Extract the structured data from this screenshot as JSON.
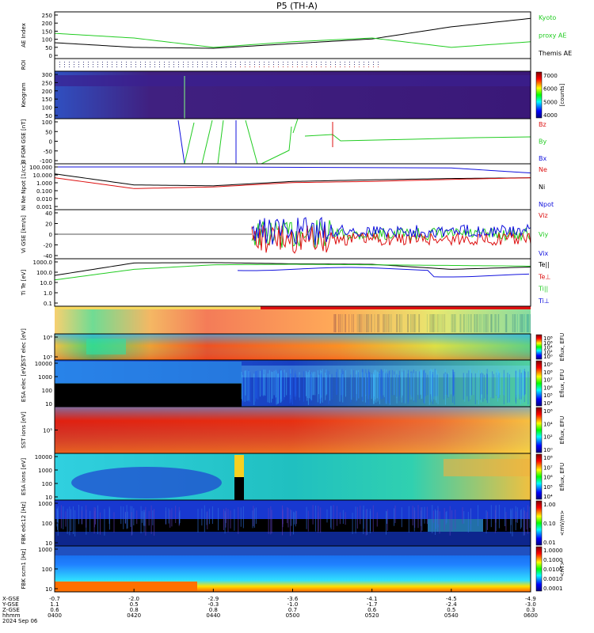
{
  "title": "P5 (TH-A)",
  "colors": {
    "green": "#22cc22",
    "red": "#dd1111",
    "blue": "#1111dd",
    "black": "#000000"
  },
  "panels": [
    {
      "id": "ae",
      "ylabel": "AE Index",
      "yticks": [
        "250",
        "200",
        "150",
        "100",
        "50",
        "0"
      ],
      "legend": [
        {
          "text": "Kyoto",
          "color": "#22cc22"
        },
        {
          "text": "proxy AE",
          "color": "#22cc22"
        },
        {
          "text": "Themis AE",
          "color": "#000000"
        }
      ]
    },
    {
      "id": "roi",
      "ylabel": "ROI",
      "yticks": []
    },
    {
      "id": "keogram",
      "ylabel": "Keogram",
      "yticks": [
        "300",
        "250",
        "200",
        "150",
        "100",
        "50"
      ],
      "colorbar": {
        "ticks": [
          "7000",
          "6000",
          "5000",
          "4000"
        ],
        "label": "[counts]"
      }
    },
    {
      "id": "bfgm",
      "ylabel": "B FGM GSE [nT]",
      "yticks": [
        "100",
        "50",
        "0",
        "-50",
        "-100"
      ],
      "legend": [
        {
          "text": "Bz",
          "color": "#dd1111"
        },
        {
          "text": "By",
          "color": "#22cc22"
        },
        {
          "text": "Bx",
          "color": "#1111dd"
        }
      ]
    },
    {
      "id": "density",
      "ylabel": "Ni Ne Npot [1/cc]",
      "yticks": [
        "100.000",
        "10.000",
        "1.000",
        "0.100",
        "0.010",
        "0.001"
      ],
      "legend": [
        {
          "text": "Ne",
          "color": "#dd1111"
        },
        {
          "text": "Ni",
          "color": "#000000"
        },
        {
          "text": "Npot",
          "color": "#1111dd"
        }
      ]
    },
    {
      "id": "velocity",
      "ylabel": "Vi GSE [km/s]",
      "yticks": [
        "40",
        "20",
        "0",
        "-20",
        "-40"
      ],
      "legend": [
        {
          "text": "Viz",
          "color": "#dd1111"
        },
        {
          "text": "Viy",
          "color": "#22cc22"
        },
        {
          "text": "Vix",
          "color": "#1111dd"
        }
      ]
    },
    {
      "id": "temperature",
      "ylabel": "Ti Te [eV]",
      "yticks": [
        "1000.0",
        "100.0",
        "10.0",
        "1.0",
        "0.1"
      ],
      "legend": [
        {
          "text": "Te||",
          "color": "#000000"
        },
        {
          "text": "Te⊥",
          "color": "#dd1111"
        },
        {
          "text": "Ti||",
          "color": "#22cc22"
        },
        {
          "text": "Ti⊥",
          "color": "#1111dd"
        }
      ]
    },
    {
      "id": "sst_e",
      "ylabel": "SST elec [eV]",
      "yticks": [
        "10⁶",
        "10⁵"
      ],
      "colorbar": {
        "ticks": [
          "10⁸",
          "10⁶",
          "10⁴",
          "10²",
          "10⁰"
        ],
        "label": "Eflux, EFU"
      }
    },
    {
      "id": "esa_e",
      "ylabel": "ESA elec [eV]",
      "yticks": [
        "10000",
        "1000",
        "100",
        "10"
      ],
      "colorbar": {
        "ticks": [
          "10⁹",
          "10⁸",
          "10⁷",
          "10⁶",
          "10⁵",
          "10⁴"
        ],
        "label": "Eflux, EFU"
      }
    },
    {
      "id": "sst_i",
      "ylabel": "SST ions [eV]",
      "yticks": [
        "10⁵"
      ],
      "colorbar": {
        "ticks": [
          "10⁶",
          "10⁴",
          "10²",
          "10⁰"
        ],
        "label": "Eflux, EFU"
      }
    },
    {
      "id": "esa_i",
      "ylabel": "ESA ions [eV]",
      "yticks": [
        "10000",
        "1000",
        "100",
        "10"
      ],
      "colorbar": {
        "ticks": [
          "10⁸",
          "10⁷",
          "10⁶",
          "10⁵",
          "10⁴"
        ],
        "label": "Eflux, EFU"
      }
    },
    {
      "id": "fbk_e",
      "ylabel": "FBK edc12 [Hz]",
      "yticks": [
        "1000",
        "100",
        "10"
      ],
      "colorbar": {
        "ticks": [
          "1.00",
          "0.10",
          "0.01"
        ],
        "label": "<mV/m>"
      }
    },
    {
      "id": "fbk_b",
      "ylabel": "FBK scm1 [Hz]",
      "yticks": [
        "1000",
        "100",
        "10"
      ],
      "colorbar": {
        "ticks": [
          "1.0000",
          "0.1000",
          "0.0100",
          "0.0010",
          "0.0001"
        ],
        "label": "<nT>"
      }
    }
  ],
  "xaxis": {
    "row_labels": [
      "X-GSE",
      "Y-GSE",
      "Z-GSE",
      "hhmm",
      "2024 Sep 06"
    ],
    "ticks": [
      {
        "x": "-0.7",
        "y": "1.1",
        "z": "0.6",
        "t": "0400"
      },
      {
        "x": "-2.0",
        "y": "0.5",
        "z": "0.8",
        "t": "0420"
      },
      {
        "x": "-2.9",
        "y": "-0.3",
        "z": "0.8",
        "t": "0440"
      },
      {
        "x": "-3.6",
        "y": "-1.0",
        "z": "0.7",
        "t": "0500"
      },
      {
        "x": "-4.1",
        "y": "-1.7",
        "z": "0.6",
        "t": "0520"
      },
      {
        "x": "-4.5",
        "y": "-2.4",
        "z": "0.5",
        "t": "0540"
      },
      {
        "x": "-4.9",
        "y": "-3.0",
        "z": "0.3",
        "t": "0600"
      }
    ]
  },
  "chart_data": [
    {
      "type": "line",
      "panel": "ae",
      "x": [
        "0400",
        "0420",
        "0440",
        "0500",
        "0520",
        "0540",
        "0600"
      ],
      "series": [
        {
          "name": "Themis AE",
          "values": [
            85,
            60,
            55,
            80,
            105,
            170,
            215
          ]
        },
        {
          "name": "proxy AE",
          "values": [
            135,
            110,
            60,
            90,
            110,
            60,
            90
          ]
        }
      ],
      "ylim": [
        0,
        250
      ]
    },
    {
      "type": "line",
      "panel": "density",
      "x": [
        "0400",
        "0420",
        "0440",
        "0500",
        "0520",
        "0540",
        "0600"
      ],
      "series": [
        {
          "name": "Ni",
          "values": [
            8,
            0.5,
            0.4,
            1.2,
            1.8,
            2.5,
            3
          ]
        },
        {
          "name": "Ne",
          "values": [
            3,
            0.2,
            0.3,
            0.9,
            1.2,
            2,
            3
          ]
        },
        {
          "name": "Npot",
          "values": [
            45,
            45,
            45,
            null,
            null,
            35,
            10
          ]
        }
      ],
      "ylog": true,
      "ylim": [
        0.001,
        100
      ]
    },
    {
      "type": "line",
      "panel": "temperature",
      "x": [
        "0400",
        "0420",
        "0440",
        "0500",
        "0520",
        "0540",
        "0600"
      ],
      "series": [
        {
          "name": "Te||",
          "values": [
            80,
            1200,
            1300,
            1000,
            900,
            300,
            500
          ]
        },
        {
          "name": "Ti||",
          "values": [
            30,
            300,
            800,
            900,
            800,
            700,
            600
          ]
        }
      ],
      "ylog": true,
      "ylim": [
        0.1,
        3000
      ]
    }
  ]
}
